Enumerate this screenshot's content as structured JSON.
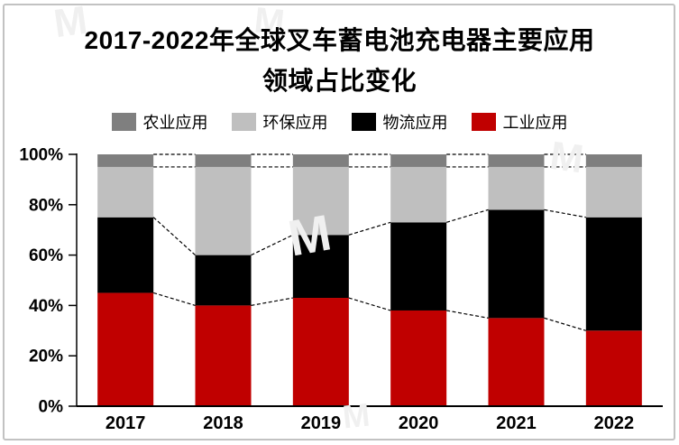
{
  "title": {
    "line1": "2017-2022年全球叉车蓄电池充电器主要应用",
    "line2": "领域占比变化"
  },
  "legend": {
    "items": [
      {
        "key": "agriculture",
        "label": "农业应用",
        "color": "#7F7F7F"
      },
      {
        "key": "environmental",
        "label": "环保应用",
        "color": "#BFBFBF"
      },
      {
        "key": "logistics",
        "label": "物流应用",
        "color": "#000000"
      },
      {
        "key": "industrial",
        "label": "工业应用",
        "color": "#C00000"
      }
    ]
  },
  "chart_data": {
    "type": "bar",
    "subtype": "stacked-percent",
    "title": "2017-2022年全球叉车蓄电池充电器主要应用领域占比变化",
    "categories": [
      "2017",
      "2018",
      "2019",
      "2020",
      "2021",
      "2022"
    ],
    "series": [
      {
        "key": "industrial",
        "name": "工业应用",
        "color": "#C00000",
        "values": [
          45,
          40,
          43,
          38,
          35,
          30
        ]
      },
      {
        "key": "logistics",
        "name": "物流应用",
        "color": "#000000",
        "values": [
          30,
          20,
          25,
          35,
          43,
          45
        ]
      },
      {
        "key": "environmental",
        "name": "环保应用",
        "color": "#BFBFBF",
        "values": [
          20,
          35,
          27,
          22,
          17,
          20
        ]
      },
      {
        "key": "agriculture",
        "name": "农业应用",
        "color": "#7F7F7F",
        "values": [
          5,
          5,
          5,
          5,
          5,
          5
        ]
      }
    ],
    "xlabel": "",
    "ylabel": "",
    "ylim": [
      0,
      100
    ],
    "yticks": [
      {
        "value": 0,
        "label": "0%"
      },
      {
        "value": 20,
        "label": "20%"
      },
      {
        "value": 40,
        "label": "40%"
      },
      {
        "value": 60,
        "label": "60%"
      },
      {
        "value": 80,
        "label": "80%"
      },
      {
        "value": 100,
        "label": "100%"
      }
    ],
    "grid": false,
    "series_connector_lines": "dashed",
    "legend_position": "top"
  },
  "colors": {
    "axis": "#000000",
    "connector_line": "#000000",
    "frame_border": "#C2C2C2",
    "background": "#FFFFFF"
  }
}
